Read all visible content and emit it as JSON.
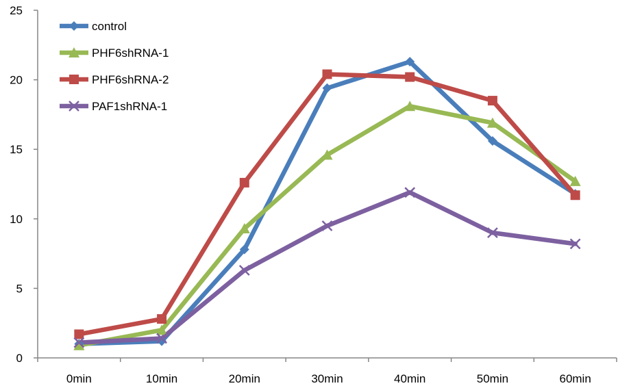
{
  "chart_data": {
    "type": "line",
    "title": "",
    "xlabel": "",
    "ylabel": "",
    "categories": [
      "0min",
      "10min",
      "20min",
      "30min",
      "40min",
      "50min",
      "60min"
    ],
    "ylim": [
      0,
      25
    ],
    "yticks": [
      0,
      5,
      10,
      15,
      20,
      25
    ],
    "grid": false,
    "legend_position": "top-left",
    "series": [
      {
        "name": "control",
        "color": "#4a7ebb",
        "marker": "diamond",
        "values": [
          1.0,
          1.2,
          7.8,
          19.4,
          21.3,
          15.6,
          11.8
        ]
      },
      {
        "name": "PHF6shRNA-1",
        "color": "#98b954",
        "marker": "triangle",
        "values": [
          0.9,
          2.0,
          9.3,
          14.6,
          18.1,
          16.9,
          12.7
        ]
      },
      {
        "name": "PHF6shRNA-2",
        "color": "#be4b48",
        "marker": "square",
        "values": [
          1.7,
          2.8,
          12.6,
          20.4,
          20.2,
          18.5,
          11.7
        ]
      },
      {
        "name": "PAF1shRNA-1",
        "color": "#7d60a0",
        "marker": "x",
        "values": [
          1.1,
          1.4,
          6.3,
          9.5,
          11.9,
          9.0,
          8.2
        ]
      }
    ]
  }
}
